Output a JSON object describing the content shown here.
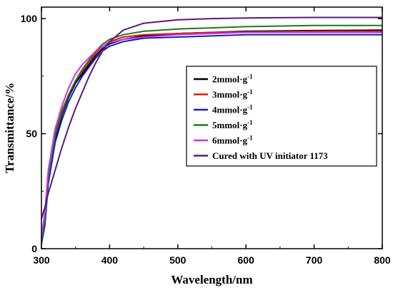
{
  "chart_data": {
    "type": "line",
    "xlabel": "Wavelength/nm",
    "ylabel": "Transmittance/%",
    "xlim": [
      300,
      800
    ],
    "ylim": [
      0,
      105
    ],
    "xticks": [
      300,
      400,
      500,
      600,
      700,
      800
    ],
    "yticks": [
      0,
      50,
      100
    ],
    "grid": false,
    "legend_position": "center-right",
    "series": [
      {
        "name": "2mmol·g",
        "sup": "-1",
        "color": "#000000",
        "x": [
          300,
          305,
          310,
          320,
          330,
          340,
          350,
          360,
          370,
          380,
          390,
          400,
          420,
          450,
          500,
          550,
          600,
          700,
          800
        ],
        "y": [
          3,
          12,
          30,
          48,
          58,
          66,
          72,
          76,
          80,
          84,
          87,
          89,
          91,
          92.5,
          93.5,
          94,
          94.5,
          94.8,
          95
        ]
      },
      {
        "name": "3mmol·g",
        "sup": "-1",
        "color": "#cc2200",
        "x": [
          300,
          305,
          310,
          320,
          330,
          340,
          350,
          360,
          370,
          380,
          390,
          400,
          420,
          450,
          500,
          550,
          600,
          700,
          800
        ],
        "y": [
          4,
          14,
          32,
          50,
          60,
          67,
          73,
          77,
          81,
          85,
          88,
          90,
          92,
          93,
          93.5,
          94,
          94.2,
          94.5,
          94.5
        ]
      },
      {
        "name": "4mmol·g",
        "sup": "-1",
        "color": "#1a1acc",
        "x": [
          300,
          305,
          310,
          320,
          330,
          340,
          350,
          360,
          370,
          380,
          390,
          400,
          420,
          450,
          500,
          550,
          600,
          700,
          800
        ],
        "y": [
          2,
          10,
          28,
          46,
          56,
          64,
          70,
          75,
          79,
          83,
          86,
          88,
          90,
          91.5,
          92,
          92.5,
          93,
          93,
          93
        ]
      },
      {
        "name": "5mmol·g",
        "sup": "-1",
        "color": "#1f7a1f",
        "x": [
          300,
          305,
          310,
          320,
          330,
          340,
          350,
          360,
          370,
          380,
          390,
          400,
          420,
          450,
          500,
          550,
          600,
          700,
          800
        ],
        "y": [
          3,
          13,
          31,
          49,
          59,
          67,
          73,
          78,
          82,
          86,
          89,
          91,
          93,
          94.5,
          95.5,
          96,
          96.5,
          97,
          97
        ]
      },
      {
        "name": "6mmol·g",
        "sup": "-1",
        "color": "#cc33ee",
        "x": [
          300,
          305,
          310,
          320,
          330,
          340,
          350,
          360,
          370,
          380,
          390,
          400,
          420,
          450,
          500,
          550,
          600,
          700,
          800
        ],
        "y": [
          5,
          16,
          34,
          52,
          62,
          70,
          76,
          80,
          83,
          86,
          88,
          89.5,
          91,
          92,
          93,
          93.5,
          94,
          94,
          94
        ]
      },
      {
        "name": "Cured with UV initiator 1173",
        "sup": "",
        "color": "#5b1a7a",
        "x": [
          300,
          305,
          310,
          320,
          330,
          340,
          350,
          360,
          370,
          380,
          390,
          400,
          420,
          450,
          500,
          550,
          600,
          700,
          800
        ],
        "y": [
          13,
          18,
          24,
          34,
          44,
          53,
          61,
          68,
          75,
          81,
          86,
          90,
          95,
          98,
          99.5,
          100,
          100.3,
          100.5,
          100.5
        ]
      }
    ]
  }
}
